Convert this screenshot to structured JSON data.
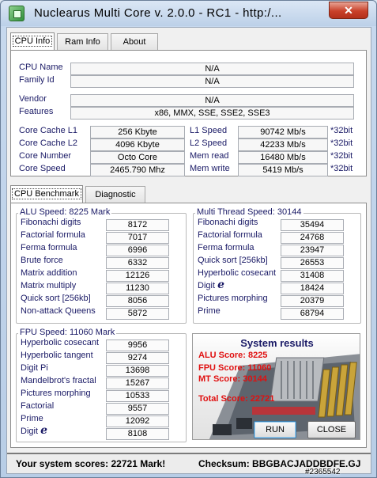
{
  "window": {
    "title": "Nuclearus Multi Core  v. 2.0.0  -  RC1  -  http:/...",
    "close_glyph": "✕"
  },
  "top_tabs": [
    "CPU Info",
    "Ram Info",
    "About"
  ],
  "cpu_info": {
    "cpu_name_label": "CPU Name",
    "cpu_name": "N/A",
    "family_label": "Family Id",
    "family": "N/A",
    "vendor_label": "Vendor",
    "vendor": "N/A",
    "features_label": "Features",
    "features": "x86, MMX, SSE, SSE2, SSE3",
    "cache_l1_label": "Core Cache L1",
    "cache_l1": "256 Kbyte",
    "cache_l2_label": "Core Cache L2",
    "cache_l2": "4096 Kbyte",
    "core_number_label": "Core Number",
    "core_number": "Octo Core",
    "core_speed_label": "Core Speed",
    "core_speed": "2465.790 Mhz",
    "l1_speed_label": "L1 Speed",
    "l1_speed": "90742 Mb/s",
    "l2_speed_label": "L2 Speed",
    "l2_speed": "42233 Mb/s",
    "mem_read_label": "Mem read",
    "mem_read": "16480 Mb/s",
    "mem_write_label": "Mem write",
    "mem_write": "5419 Mb/s",
    "unit_suffix": "*32bit"
  },
  "bench_tabs": [
    "CPU Benchmark",
    "Diagnostic"
  ],
  "alu": {
    "title": "ALU Speed: 8225 Mark",
    "rows": [
      {
        "label": "Fibonachi digits",
        "value": "8172"
      },
      {
        "label": "Factorial formula",
        "value": "7017"
      },
      {
        "label": "Ferma formula",
        "value": "6996"
      },
      {
        "label": "Brute force",
        "value": "6332"
      },
      {
        "label": "Matrix addition",
        "value": "12126"
      },
      {
        "label": "Matrix multiply",
        "value": "11230"
      },
      {
        "label": "Quick sort [256kb]",
        "value": "8056"
      },
      {
        "label": "Non-attack Queens",
        "value": "5872"
      }
    ]
  },
  "mt": {
    "title": "Multi Thread Speed: 30144",
    "rows": [
      {
        "label": "Fibonachi digits",
        "value": "35494"
      },
      {
        "label": "Factorial formula",
        "value": "24768"
      },
      {
        "label": "Ferma formula",
        "value": "23947"
      },
      {
        "label": "Quick sort [256kb]",
        "value": "26553"
      },
      {
        "label": "Hyperbolic cosecant",
        "value": "31408"
      },
      {
        "label": "Digit",
        "value": "18424"
      },
      {
        "label": "Pictures morphing",
        "value": "20379"
      },
      {
        "label": "Prime",
        "value": "68794"
      }
    ]
  },
  "fpu": {
    "title": "FPU Speed: 11060 Mark",
    "rows": [
      {
        "label": "Hyperbolic cosecant",
        "value": "9956"
      },
      {
        "label": "Hyperbolic tangent",
        "value": "9274"
      },
      {
        "label": "Digit Pi",
        "value": "13698"
      },
      {
        "label": "Mandelbrot's fractal",
        "value": "15267"
      },
      {
        "label": "Pictures morphing",
        "value": "10533"
      },
      {
        "label": "Factorial",
        "value": "9557"
      },
      {
        "label": "Prime",
        "value": "12092"
      },
      {
        "label": "Digit",
        "value": "8108"
      }
    ]
  },
  "e_symbol": "e",
  "results": {
    "title": "System results",
    "alu": "ALU Score: 8225",
    "fpu": "FPU Score: 11060",
    "mt": "MT Score: 30144",
    "total": "Total Score: 22721"
  },
  "buttons": {
    "run": "RUN",
    "close": "CLOSE"
  },
  "status": {
    "scores": "Your system scores: 22721 Mark!",
    "checksum": "Checksum: BBGBACJADDBDFE.GJ"
  },
  "watermark": "#2365542",
  "colors": {
    "title_bg": "#bcd0e8",
    "label_text": "#1a1a66",
    "result_text": "#e01010",
    "close_button": "#c9412a"
  },
  "icons": [
    "app-icon",
    "close-icon",
    "motherboard-illustration"
  ]
}
